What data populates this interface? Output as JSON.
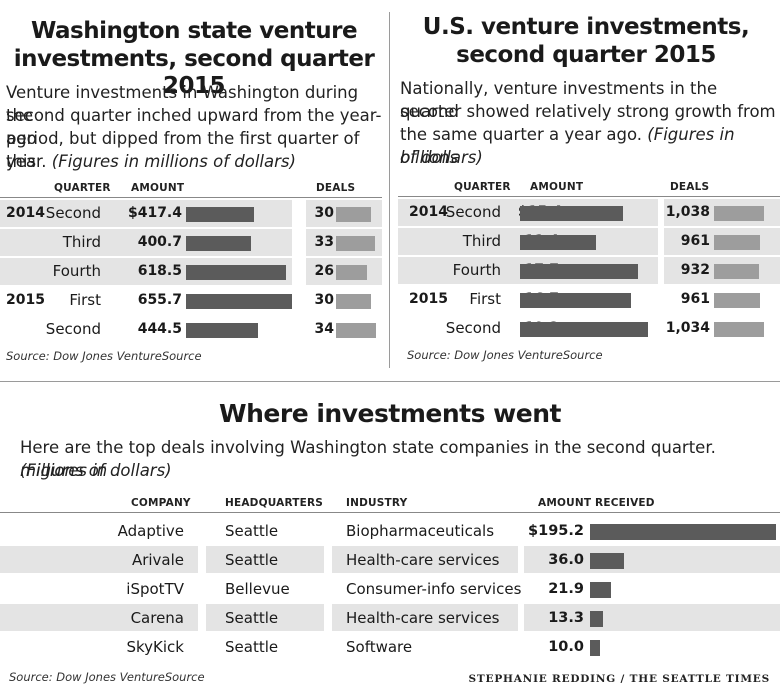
{
  "left": {
    "title_line1": "Washington state venture",
    "title_line2": "investments, second quarter 2015",
    "intro_lines": [
      "Venture investments in Washington during the",
      "second quarter inched upward from the year-ago",
      "period, but dipped from the first quarter of this"
    ],
    "intro_last_plain": "year. ",
    "intro_last_italic": "(Figures in millions of dollars)",
    "headers": {
      "quarter": "QUARTER",
      "amount": "AMOUNT",
      "deals": "DEALS"
    },
    "source": "Source: Dow Jones VentureSource"
  },
  "right": {
    "title_line1": "U.S. venture investments,",
    "title_line2": "second quarter 2015",
    "intro_lines": [
      "Nationally, venture investments in the second",
      "quarter showed relatively strong growth from"
    ],
    "intro_line3_plain": "the same quarter a year ago. ",
    "intro_line3_italic": "(Figures in billions",
    "intro_line4_italic": "of dollars)",
    "headers": {
      "quarter": "QUARTER",
      "amount": "AMOUNT",
      "deals": "DEALS"
    },
    "source": "Source: Dow Jones VentureSource"
  },
  "bottom": {
    "title": "Where investments went",
    "intro_line1_plain": "Here are the top deals involving Washington state companies in the second quarter. ",
    "intro_line1_italic": "(Figures in",
    "intro_line2_italic": "millions of dollars)",
    "headers": {
      "company": "COMPANY",
      "headquarters": "HEADQUARTERS",
      "industry": "INDUSTRY",
      "amount": "AMOUNT RECEIVED"
    },
    "source": "Source: Dow Jones VentureSource",
    "credit": "STEPHANIE REDDING / THE SEATTLE TIMES"
  },
  "chart_data": [
    {
      "type": "bar",
      "title": "Washington state venture investments, second quarter 2015",
      "unit": "Figures in millions of dollars",
      "rows": [
        {
          "year": "2014",
          "quarter": "Second",
          "amount": 417.4,
          "amount_label": "$417.4",
          "deals": 30,
          "deals_label": "30",
          "shaded": true
        },
        {
          "year": "",
          "quarter": "Third",
          "amount": 400.7,
          "amount_label": "400.7",
          "deals": 33,
          "deals_label": "33",
          "shaded": true
        },
        {
          "year": "",
          "quarter": "Fourth",
          "amount": 618.5,
          "amount_label": "618.5",
          "deals": 26,
          "deals_label": "26",
          "shaded": true
        },
        {
          "year": "2015",
          "quarter": "First",
          "amount": 655.7,
          "amount_label": "655.7",
          "deals": 30,
          "deals_label": "30",
          "shaded": false
        },
        {
          "year": "",
          "quarter": "Second",
          "amount": 444.5,
          "amount_label": "444.5",
          "deals": 34,
          "deals_label": "34",
          "shaded": false
        }
      ],
      "amount_max": 655.7,
      "deals_max": 34
    },
    {
      "type": "bar",
      "title": "U.S. venture investments, second quarter 2015",
      "unit": "Figures in billions of dollars",
      "rows": [
        {
          "year": "2014",
          "quarter": "Second",
          "amount": 15.4,
          "amount_label": "$15.4",
          "deals": 1038,
          "deals_label": "1,038",
          "shaded": true
        },
        {
          "year": "",
          "quarter": "Third",
          "amount": 11.4,
          "amount_label": "11.4",
          "deals": 961,
          "deals_label": "961",
          "shaded": true
        },
        {
          "year": "",
          "quarter": "Fourth",
          "amount": 17.7,
          "amount_label": "17.7",
          "deals": 932,
          "deals_label": "932",
          "shaded": true
        },
        {
          "year": "2015",
          "quarter": "First",
          "amount": 16.7,
          "amount_label": "16.7",
          "deals": 961,
          "deals_label": "961",
          "shaded": false
        },
        {
          "year": "",
          "quarter": "Second",
          "amount": 19.2,
          "amount_label": "19.2",
          "deals": 1034,
          "deals_label": "1,034",
          "shaded": false
        }
      ],
      "amount_max": 19.2,
      "deals_max": 1038
    },
    {
      "type": "bar",
      "title": "Where investments went",
      "unit": "Figures in millions of dollars",
      "rows": [
        {
          "company": "Adaptive Biotechnologies",
          "headquarters": "Seattle",
          "industry": "Biopharmaceuticals",
          "amount": 195.2,
          "amount_label": "$195.2",
          "shaded": false
        },
        {
          "company": "Arivale",
          "headquarters": "Seattle",
          "industry": "Health-care services",
          "amount": 36.0,
          "amount_label": "36.0",
          "shaded": true
        },
        {
          "company": "iSpotTV",
          "headquarters": "Bellevue",
          "industry": "Consumer-info services",
          "amount": 21.9,
          "amount_label": "21.9",
          "shaded": false
        },
        {
          "company": "Carena",
          "headquarters": "Seattle",
          "industry": "Health-care services",
          "amount": 13.3,
          "amount_label": "13.3",
          "shaded": true
        },
        {
          "company": "SkyKick",
          "headquarters": "Seattle",
          "industry": "Software",
          "amount": 10.0,
          "amount_label": "10.0",
          "shaded": false
        }
      ],
      "amount_max": 195.2
    }
  ]
}
